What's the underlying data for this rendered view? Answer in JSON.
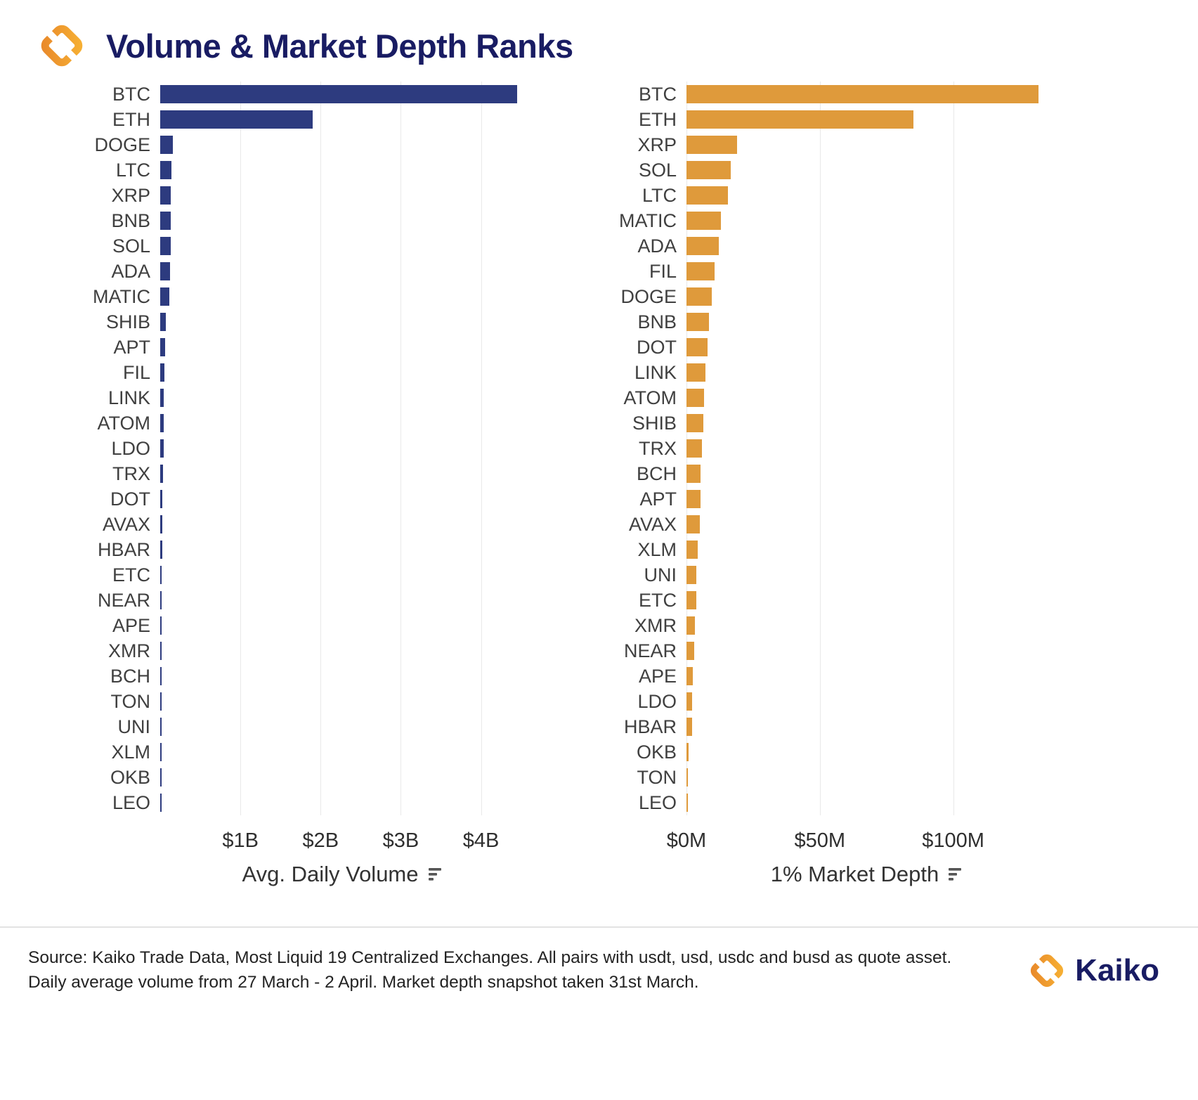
{
  "header": {
    "title": "Volume & Market Depth Ranks"
  },
  "footer": {
    "source_line1": "Source: Kaiko Trade Data, Most Liquid 19 Centralized Exchanges. All pairs with usdt, usd, usdc and busd as quote asset.",
    "source_line2": "Daily average volume from 27 March - 2 April. Market depth snapshot taken 31st March.",
    "brand": "Kaiko"
  },
  "colors": {
    "navy_bar": "#2D3B7F",
    "orange_bar": "#DF9A3B",
    "title_text": "#191C63",
    "grid_line": "#E9E9E9",
    "label_text": "#404040",
    "brand_orange_dark": "#E98A2B",
    "brand_orange_light": "#F6AF33"
  },
  "chart_data": [
    {
      "type": "bar",
      "orientation": "horizontal",
      "xlabel": "Avg. Daily Volume",
      "unit": "billion USD",
      "categories": [
        "BTC",
        "ETH",
        "DOGE",
        "LTC",
        "XRP",
        "BNB",
        "SOL",
        "ADA",
        "MATIC",
        "SHIB",
        "APT",
        "FIL",
        "LINK",
        "ATOM",
        "LDO",
        "TRX",
        "DOT",
        "AVAX",
        "HBAR",
        "ETC",
        "NEAR",
        "APE",
        "XMR",
        "BCH",
        "TON",
        "UNI",
        "XLM",
        "OKB",
        "LEO"
      ],
      "values": [
        4.45,
        1.9,
        0.16,
        0.14,
        0.13,
        0.13,
        0.13,
        0.12,
        0.115,
        0.07,
        0.06,
        0.05,
        0.048,
        0.045,
        0.04,
        0.032,
        0.03,
        0.028,
        0.026,
        0.02,
        0.018,
        0.016,
        0.014,
        0.013,
        0.012,
        0.012,
        0.01,
        0.009,
        0.006
      ],
      "xlim": [
        0,
        4.6
      ],
      "ticks": [
        {
          "value": 1,
          "label": "$1B"
        },
        {
          "value": 2,
          "label": "$2B"
        },
        {
          "value": 3,
          "label": "$3B"
        },
        {
          "value": 4,
          "label": "$4B"
        }
      ],
      "bar_color": "#2D3B7F",
      "grid": true
    },
    {
      "type": "bar",
      "orientation": "horizontal",
      "xlabel": "1% Market Depth",
      "unit": "million USD",
      "categories": [
        "BTC",
        "ETH",
        "XRP",
        "SOL",
        "LTC",
        "MATIC",
        "ADA",
        "FIL",
        "DOGE",
        "BNB",
        "DOT",
        "LINK",
        "ATOM",
        "SHIB",
        "TRX",
        "BCH",
        "APT",
        "AVAX",
        "XLM",
        "UNI",
        "ETC",
        "XMR",
        "NEAR",
        "APE",
        "LDO",
        "HBAR",
        "OKB",
        "TON",
        "LEO"
      ],
      "values": [
        132,
        85,
        19,
        16.5,
        15.5,
        13,
        12,
        10.5,
        9.5,
        8.5,
        8,
        7.2,
        6.7,
        6.2,
        5.8,
        5.4,
        5.2,
        5.0,
        4.3,
        3.8,
        3.6,
        3.2,
        2.9,
        2.5,
        2.2,
        2.0,
        0.9,
        0.6,
        0.4
      ],
      "xlim": [
        0,
        137
      ],
      "ticks": [
        {
          "value": 0,
          "label": "$0M"
        },
        {
          "value": 50,
          "label": "$50M"
        },
        {
          "value": 100,
          "label": "$100M"
        }
      ],
      "bar_color": "#DF9A3B",
      "grid": true
    }
  ]
}
